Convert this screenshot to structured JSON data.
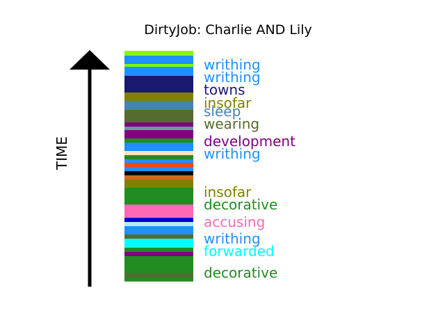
{
  "chart_data": {
    "type": "bar",
    "title": "DirtyJob: Charlie AND Lily",
    "ylabel": "TIME",
    "ylim": [
      0,
      338
    ],
    "segments": [
      {
        "color": "#7FFF00",
        "height": 7
      },
      {
        "color": "#1E90FF",
        "height": 12
      },
      {
        "color": "#7FFF00",
        "height": 4
      },
      {
        "color": "#1E90FF",
        "height": 13
      },
      {
        "color": "#191970",
        "height": 24
      },
      {
        "color": "#808000",
        "height": 12
      },
      {
        "color": "#4682B4",
        "height": 13
      },
      {
        "color": "#556B2F",
        "height": 18
      },
      {
        "color": "#800080",
        "height": 6
      },
      {
        "color": "#5F9EA0",
        "height": 5
      },
      {
        "color": "#800080",
        "height": 12
      },
      {
        "color": "#228B22",
        "height": 6
      },
      {
        "color": "#1E90FF",
        "height": 12
      },
      {
        "color": "#FFE4B5",
        "height": 6
      },
      {
        "color": "#228B22",
        "height": 6
      },
      {
        "color": "#1E90FF",
        "height": 5
      },
      {
        "color": "#FF4500",
        "height": 6
      },
      {
        "color": "#1E90FF",
        "height": 6
      },
      {
        "color": "#000000",
        "height": 6
      },
      {
        "color": "#D2691E",
        "height": 6
      },
      {
        "color": "#808000",
        "height": 12
      },
      {
        "color": "#228B22",
        "height": 24
      },
      {
        "color": "#FF69B4",
        "height": 19
      },
      {
        "color": "#0000CD",
        "height": 6
      },
      {
        "color": "#AFEEEE",
        "height": 6
      },
      {
        "color": "#1E90FF",
        "height": 12
      },
      {
        "color": "#556B2F",
        "height": 6
      },
      {
        "color": "#00FFFF",
        "height": 13
      },
      {
        "color": "#228B22",
        "height": 6
      },
      {
        "color": "#800080",
        "height": 6
      },
      {
        "color": "#228B22",
        "height": 24
      },
      {
        "color": "#556B2F",
        "height": 6
      },
      {
        "color": "#228B22",
        "height": 6
      }
    ],
    "labels": [
      {
        "text": "writhing",
        "color": "#1E90FF",
        "y": 318
      },
      {
        "text": "writhing",
        "color": "#1E90FF",
        "y": 300
      },
      {
        "text": "towns",
        "color": "#191970",
        "y": 282
      },
      {
        "text": "insofar",
        "color": "#808000",
        "y": 263
      },
      {
        "text": "sleep",
        "color": "#4682B4",
        "y": 251
      },
      {
        "text": "wearing",
        "color": "#556B2F",
        "y": 233
      },
      {
        "text": "development",
        "color": "#800080",
        "y": 208
      },
      {
        "text": "writhing",
        "color": "#1E90FF",
        "y": 190
      },
      {
        "text": "insofar",
        "color": "#808000",
        "y": 135
      },
      {
        "text": "decorative",
        "color": "#228B22",
        "y": 117
      },
      {
        "text": "accusing",
        "color": "#FF69B4",
        "y": 92
      },
      {
        "text": "writhing",
        "color": "#1E90FF",
        "y": 68
      },
      {
        "text": "forwarded",
        "color": "#00FFFF",
        "y": 50
      },
      {
        "text": "decorative",
        "color": "#228B22",
        "y": 19
      }
    ]
  }
}
